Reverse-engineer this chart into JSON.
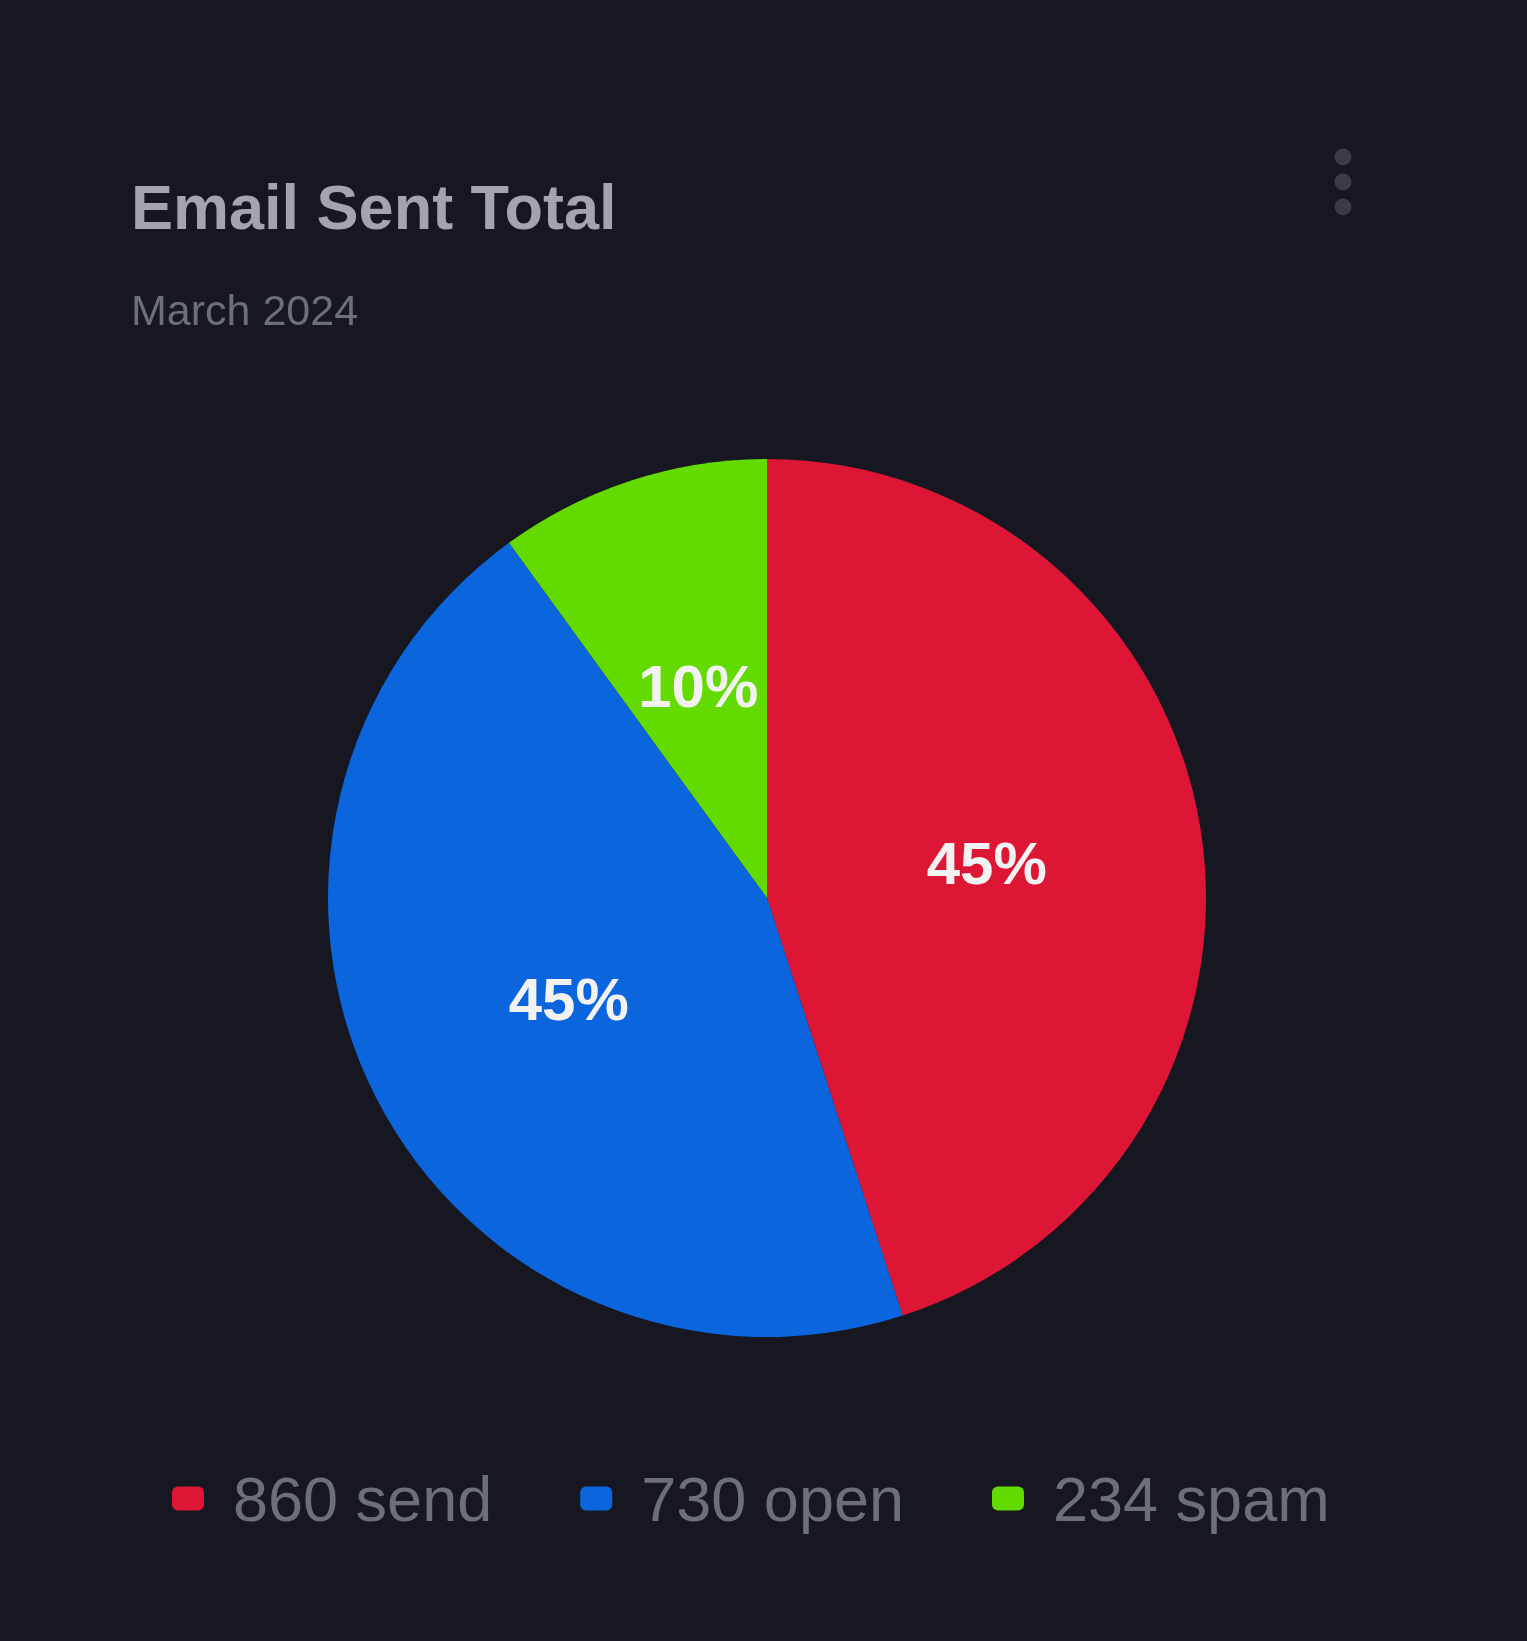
{
  "chart_data": {
    "type": "pie",
    "title": "Email Sent Total",
    "subtitle": "March 2024",
    "categories": [
      "860 send",
      "730 open",
      "234 spam"
    ],
    "values": [
      45,
      45,
      10
    ],
    "colors": [
      "#dc1634",
      "#0b66de",
      "#63da00"
    ],
    "value_labels": [
      "45%",
      "45%",
      "10%"
    ],
    "legend": "bottom"
  }
}
